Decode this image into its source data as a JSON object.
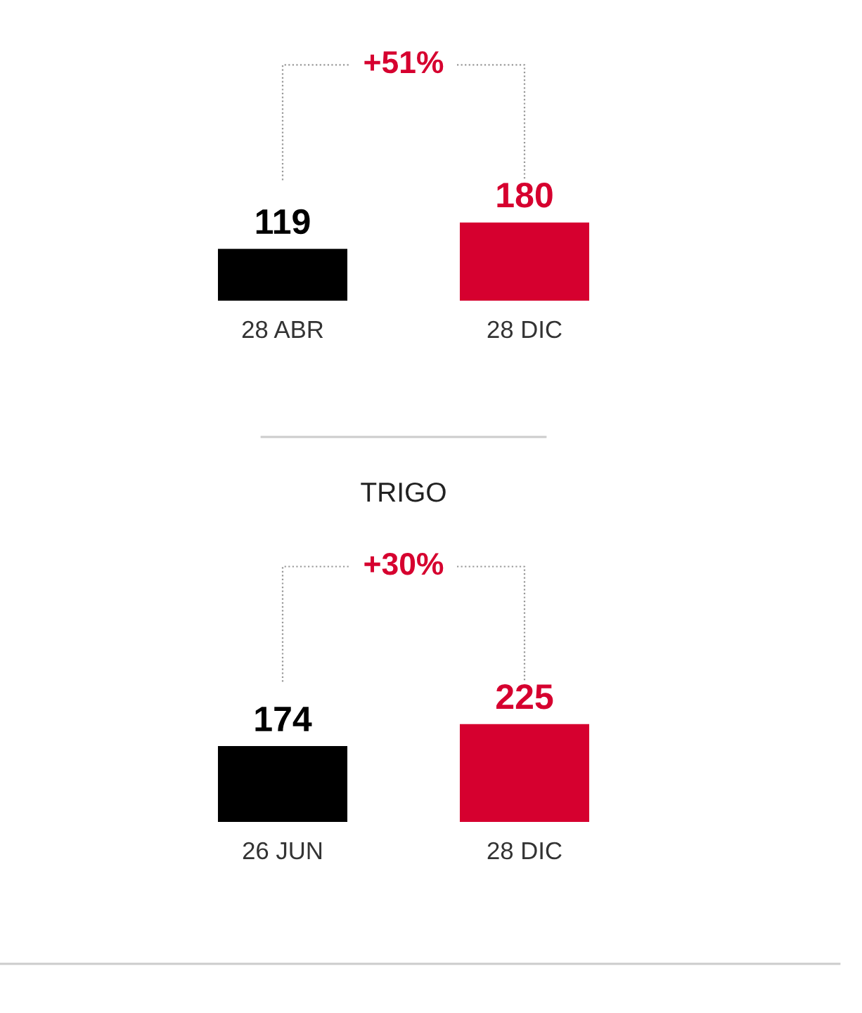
{
  "chart_data": [
    {
      "type": "bar",
      "categories": [
        "28 ABR",
        "28 DIC"
      ],
      "values": [
        119,
        180
      ],
      "colors": [
        "#000000",
        "#d6002f"
      ],
      "data_labels": true,
      "annotations": [
        "+51%"
      ]
    },
    {
      "type": "bar",
      "title": "TRIGO",
      "categories": [
        "26 JUN",
        "28 DIC"
      ],
      "values": [
        174,
        225
      ],
      "colors": [
        "#000000",
        "#d6002f"
      ],
      "data_labels": true,
      "annotations": [
        "+30%"
      ]
    }
  ]
}
